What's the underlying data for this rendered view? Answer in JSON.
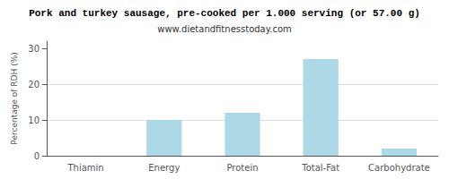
{
  "chart_data": {
    "type": "bar",
    "title": "Pork and turkey sausage, pre-cooked per 1.000 serving (or 57.00 g)",
    "subtitle": "www.dietandfitnesstoday.com",
    "ylabel": "Percentage of RDH (%)",
    "categories": [
      "Thiamin",
      "Energy",
      "Protein",
      "Total-Fat",
      "Carbohydrate"
    ],
    "values": [
      0,
      10,
      12,
      27,
      2
    ],
    "color": "#add8e6",
    "ylim": [
      0,
      32
    ],
    "yticks": [
      0,
      10,
      20,
      30
    ],
    "grid": true
  }
}
